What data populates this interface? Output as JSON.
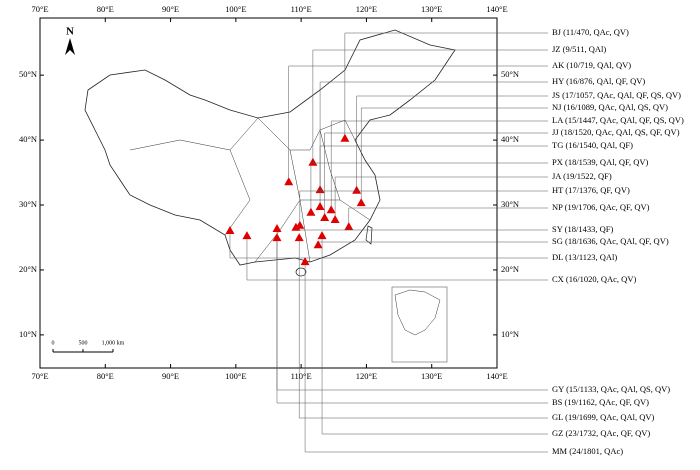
{
  "map": {
    "xticks": [
      {
        "value": 70,
        "label": "70°E"
      },
      {
        "value": 80,
        "label": "80°E"
      },
      {
        "value": 90,
        "label": "90°E"
      },
      {
        "value": 100,
        "label": "100°E"
      },
      {
        "value": 110,
        "label": "110°E"
      },
      {
        "value": 120,
        "label": "120°E"
      },
      {
        "value": 130,
        "label": "130°E"
      },
      {
        "value": 140,
        "label": "140°E"
      }
    ],
    "yticks": [
      {
        "value": 10,
        "label": "10°N"
      },
      {
        "value": 20,
        "label": "20°N"
      },
      {
        "value": 30,
        "label": "30°N"
      },
      {
        "value": 40,
        "label": "40°N"
      },
      {
        "value": 50,
        "label": "50°N"
      }
    ],
    "xlim": [
      70,
      140
    ],
    "ylim": [
      4.9,
      58.8
    ],
    "north": "N",
    "scale": [
      "0",
      "500",
      "1,000 km"
    ],
    "marker_color": "#e00000",
    "sites": [
      {
        "label": "BJ (11/470, QAc, QV)",
        "lon": 116.7,
        "lat": 40.2
      },
      {
        "label": "JZ (9/511, QAl)",
        "lon": 111.8,
        "lat": 36.5
      },
      {
        "label": "AK (10/719, QAl, QV)",
        "lon": 108.1,
        "lat": 33.5
      },
      {
        "label": "HY (16/876, QAl, QF, QV)",
        "lon": 112.9,
        "lat": 32.3
      },
      {
        "label": "JS (17/1057, QAc, QAl, QF, QS, QV)",
        "lon": 118.5,
        "lat": 32.2
      },
      {
        "label": "NJ (16/1089, QAc, QAl, QS, QV)",
        "lon": 119.2,
        "lat": 30.3
      },
      {
        "label": "LA (15/1447, QAc, QAl, QF, QS, QV)",
        "lon": 114.6,
        "lat": 29.2
      },
      {
        "label": "JJ (18/1520, QAc, QAl, QS, QF, QV)",
        "lon": 113.6,
        "lat": 28.0
      },
      {
        "label": "TG (16/1540, QAl, QF)",
        "lon": 112.9,
        "lat": 29.7
      },
      {
        "label": "PX (18/1539, QAl, QF, QV)",
        "lon": 111.5,
        "lat": 28.8
      },
      {
        "label": "JA (19/1522, QF)",
        "lon": 115.2,
        "lat": 27.7
      },
      {
        "label": "HT (17/1376, QF, QV)",
        "lon": 109.8,
        "lat": 26.8
      },
      {
        "label": "NP (19/1706, QAc, QF, QV)",
        "lon": 117.3,
        "lat": 26.6
      },
      {
        "label": "SY (18/1433, QF)",
        "lon": 109.2,
        "lat": 26.5
      },
      {
        "label": "SG (18/1636, QAc, QAl, QF, QV)",
        "lon": 112.6,
        "lat": 23.8
      },
      {
        "label": "DL (13/1123, QAl)",
        "lon": 99.1,
        "lat": 26.0
      },
      {
        "label": "CX (16/1020, QAc, QV)",
        "lon": 101.7,
        "lat": 25.2
      },
      {
        "label": "GY (15/1133, QAc, QAl, QS, QV)",
        "lon": 106.3,
        "lat": 26.3
      },
      {
        "label": "BS (19/1162, QAc, QF, QV)",
        "lon": 106.3,
        "lat": 24.9
      },
      {
        "label": "GL (19/1699, QAc, QAl, QV)",
        "lon": 109.7,
        "lat": 24.9
      },
      {
        "label": "GZ (23/1732, QAc, QF, QV)",
        "lon": 113.2,
        "lat": 25.2
      },
      {
        "label": "MM (24/1801, QAc)",
        "lon": 110.6,
        "lat": 21.2
      }
    ]
  }
}
